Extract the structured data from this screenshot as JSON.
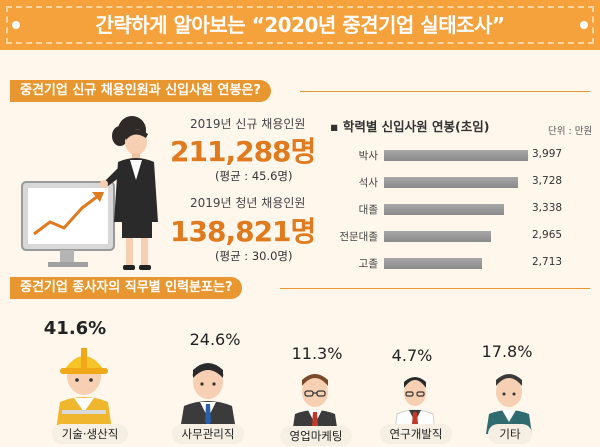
{
  "header": {
    "title": "간략하게 알아보는 “2020년 중견기업 실태조사”"
  },
  "section1": {
    "heading": "중견기업 신규 채용인원과 신입사원 연봉은?",
    "stats": [
      {
        "label": "2019년 신규 채용인원",
        "value": "211,288명",
        "avg": "(평균 : 45.6명)"
      },
      {
        "label": "2019년 청년 채용인원",
        "value": "138,821명",
        "avg": "(평균 : 30.0명)"
      }
    ]
  },
  "salary_chart": {
    "title": "학력별 신입사원 연봉(초임)",
    "unit": "단위 : 만원"
  },
  "chart_data": {
    "type": "bar",
    "orientation": "horizontal",
    "title": "학력별 신입사원 연봉(초임)",
    "unit": "단위 : 만원",
    "categories": [
      "박사",
      "석사",
      "대졸",
      "전문대졸",
      "고졸"
    ],
    "values": [
      3997,
      3728,
      3338,
      2965,
      2713
    ],
    "value_labels": [
      "3,997",
      "3,728",
      "3,338",
      "2,965",
      "2,713"
    ],
    "xlim": [
      0,
      4000
    ]
  },
  "section2": {
    "heading": "중견기업 종사자의 직무별 인력분포는?",
    "jobs": [
      {
        "pct": "41.6%",
        "value": 41.6,
        "label": "기술·생산직"
      },
      {
        "pct": "24.6%",
        "value": 24.6,
        "label": "사무관리직"
      },
      {
        "pct": "11.3%",
        "value": 11.3,
        "label": "영업마케팅"
      },
      {
        "pct": "4.7%",
        "value": 4.7,
        "label": "연구개발직"
      },
      {
        "pct": "17.8%",
        "value": 17.8,
        "label": "기타"
      }
    ]
  },
  "colors": {
    "accent": "#f5a23c",
    "section": "#e8962f",
    "highlight": "#e07a1f",
    "bar": "#9a9a9a",
    "background": "#fff7ec"
  },
  "icons": [
    "businesswoman-presenter-icon",
    "rising-chart-monitor-icon",
    "worker-hardhat-icon",
    "office-man-icon",
    "sales-man-icon",
    "researcher-icon",
    "other-man-icon"
  ]
}
